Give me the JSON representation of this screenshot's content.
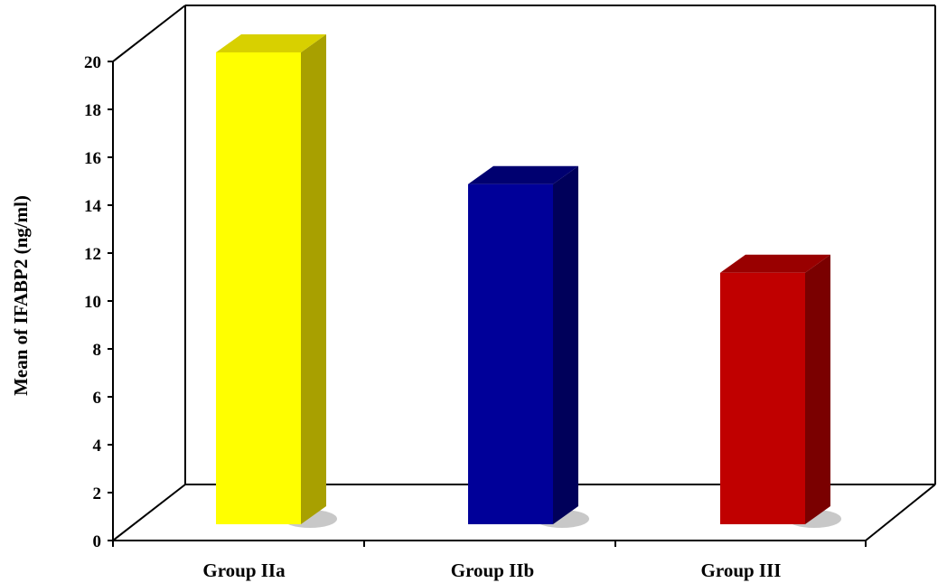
{
  "chart_data": {
    "type": "bar",
    "categories": [
      "Group IIa",
      "Group IIb",
      "Group III"
    ],
    "values": [
      19.7,
      14.2,
      10.5
    ],
    "title": "",
    "xlabel": "",
    "ylabel": "Mean of IFABP2 (ng/ml)",
    "ylim": [
      0,
      20
    ],
    "yticks": [
      "0",
      "2",
      "4",
      "6",
      "8",
      "10",
      "12",
      "14",
      "16",
      "18",
      "20"
    ],
    "colors": {
      "front": [
        "#ffff00",
        "#000099",
        "#c00000"
      ],
      "side": [
        "#a8a000",
        "#00005a",
        "#7a0000"
      ],
      "top": [
        "#d8d000",
        "#000070",
        "#990000"
      ]
    },
    "grid": false,
    "legend": "none"
  }
}
